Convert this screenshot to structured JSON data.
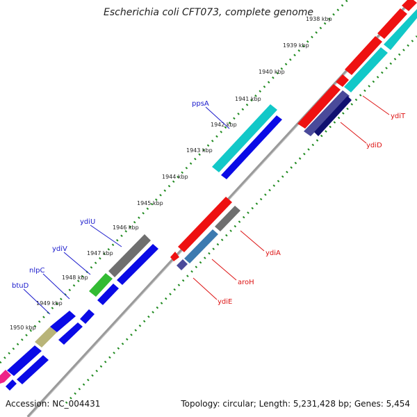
{
  "title": "Escherichia coli CFT073, complete genome",
  "accession": "Accession: NC_004431",
  "summary": "Topology: circular; Length: 5,231,428 bp; Genes: 5,454",
  "ticks": [
    "1938 kbp",
    "1939 kbp",
    "1940 kbp",
    "1941 kbp",
    "1942 kbp",
    "1943 kbp",
    "1944 kbp",
    "1945 kbp",
    "1946 kbp",
    "1947 kbp",
    "1948 kbp",
    "1949 kbp",
    "1950 kbp"
  ],
  "forward_genes": [
    "ppsA",
    "ydiU",
    "ydiV",
    "nlpC",
    "btuD"
  ],
  "reverse_genes": [
    "ydiT",
    "ydiD",
    "ydiA",
    "aroH",
    "ydiE"
  ],
  "colors": {
    "forward_label": "#1a1acc",
    "reverse_label": "#dd1111",
    "backbone": "#9a9a9a",
    "dots": "#1f8a1f",
    "red": "#ee1111",
    "blue": "#0a0ae6",
    "cyan": "#12c8c8",
    "gray": "#6f6f6f",
    "green": "#33bb33",
    "khaki": "#b8b478",
    "steelblue": "#3c7ab0",
    "slate": "#4a4a9a",
    "navy": "#101070",
    "magenta": "#ee2288"
  }
}
